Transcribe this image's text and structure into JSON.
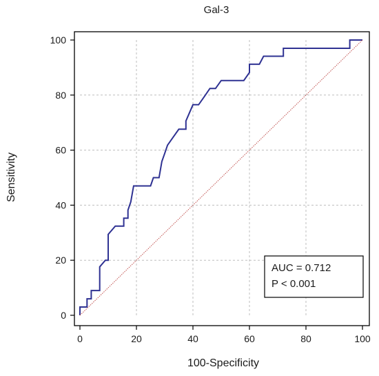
{
  "chart_data": {
    "type": "line",
    "title": "Gal-3",
    "xlabel": "100-Specificity",
    "ylabel": "Sensitivity",
    "xlim": [
      0,
      100
    ],
    "ylim": [
      0,
      100
    ],
    "xticks": [
      0,
      20,
      40,
      60,
      80,
      100
    ],
    "yticks": [
      0,
      20,
      40,
      60,
      80,
      100
    ],
    "grid": true,
    "series": [
      {
        "type": "step",
        "color": "#2e3192",
        "points": [
          [
            0,
            0
          ],
          [
            0,
            3
          ],
          [
            2.5,
            3
          ],
          [
            2.5,
            6
          ],
          [
            4,
            6
          ],
          [
            4,
            9
          ],
          [
            7,
            9
          ],
          [
            7,
            17.6
          ],
          [
            9,
            20
          ],
          [
            10,
            20
          ],
          [
            10,
            29.4
          ],
          [
            12.5,
            32.4
          ],
          [
            15.5,
            32.4
          ],
          [
            15.5,
            35.3
          ],
          [
            17,
            35.3
          ],
          [
            17,
            38.2
          ],
          [
            18,
            41.2
          ],
          [
            19,
            47
          ],
          [
            25,
            47
          ],
          [
            26,
            50
          ],
          [
            28,
            50
          ],
          [
            29,
            55.9
          ],
          [
            30,
            58.8
          ],
          [
            31,
            61.8
          ],
          [
            33,
            64.7
          ],
          [
            35,
            67.6
          ],
          [
            37.5,
            67.6
          ],
          [
            37.5,
            70.6
          ],
          [
            40,
            76.5
          ],
          [
            42,
            76.5
          ],
          [
            44,
            79.4
          ],
          [
            46,
            82.4
          ],
          [
            48,
            82.4
          ],
          [
            50,
            85.3
          ],
          [
            58,
            85.3
          ],
          [
            60,
            88.2
          ],
          [
            60,
            91.2
          ],
          [
            63.5,
            91.2
          ],
          [
            65,
            94.1
          ],
          [
            72,
            94.1
          ],
          [
            72,
            97
          ],
          [
            95.5,
            97
          ],
          [
            95.5,
            100
          ],
          [
            100,
            100
          ]
        ]
      },
      {
        "type": "reference",
        "color": "#c0504d",
        "points": [
          [
            0,
            0
          ],
          [
            100,
            100
          ]
        ]
      }
    ],
    "annotations": [
      "AUC = 0.712",
      "P < 0.001"
    ]
  }
}
